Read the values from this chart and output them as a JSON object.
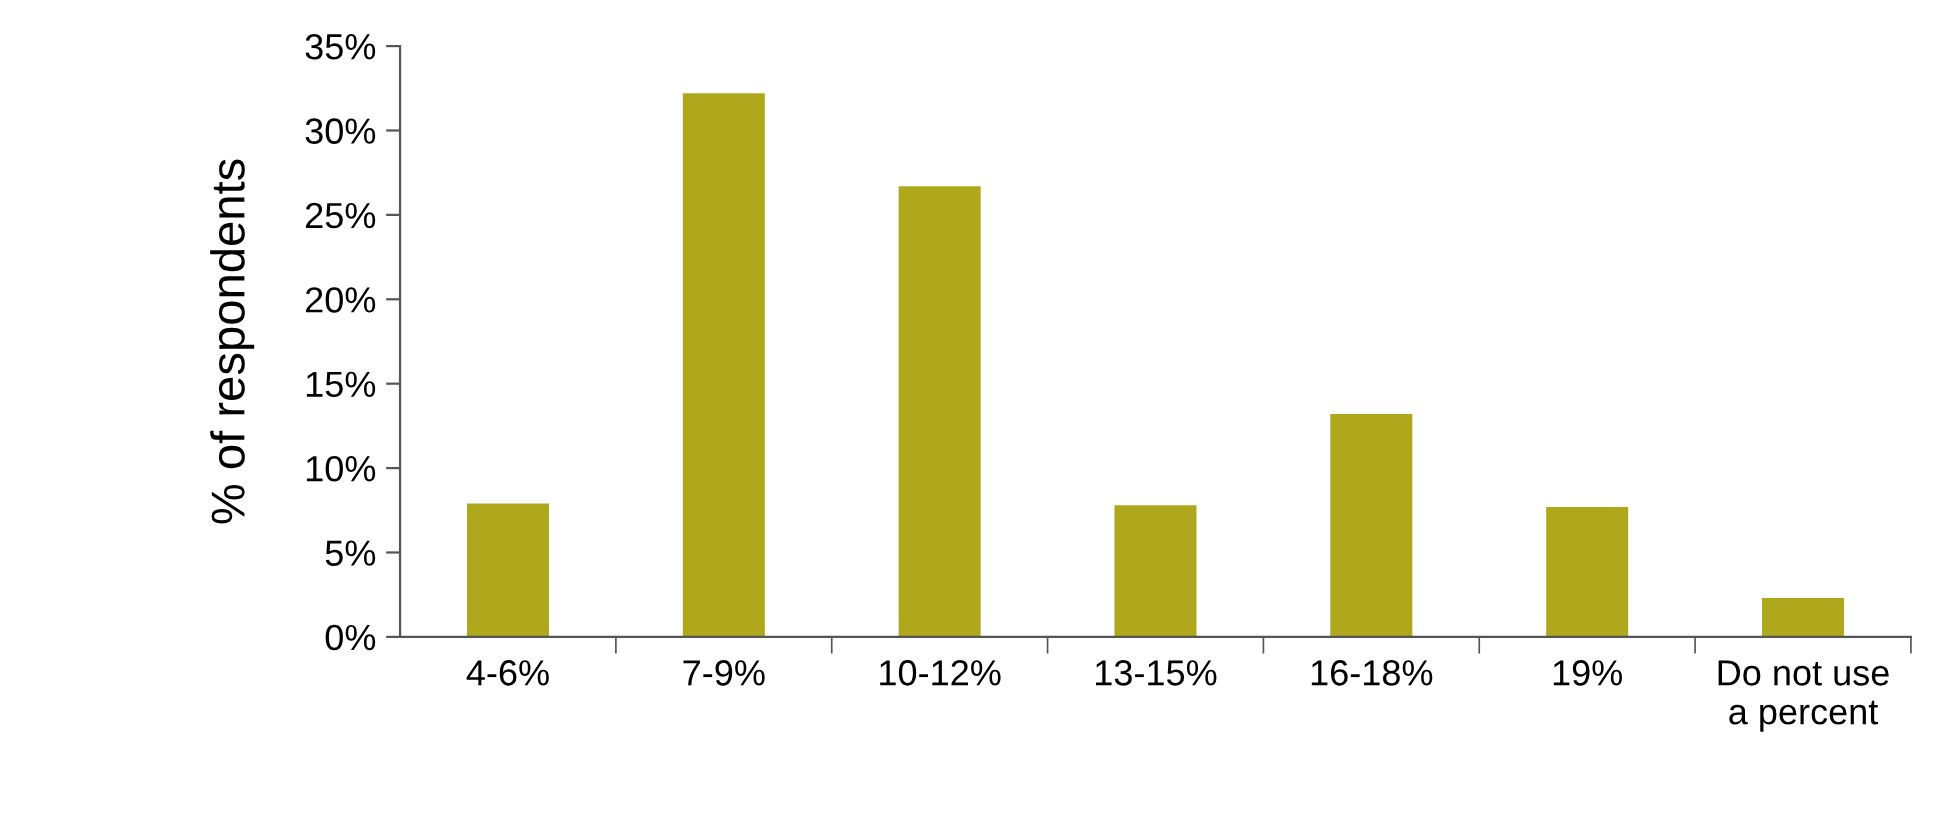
{
  "chart_data": {
    "type": "bar",
    "ylabel": "% of respondents",
    "categories": [
      "4-6%",
      "7-9%",
      "10-12%",
      "13-15%",
      "16-18%",
      "19%",
      "Do not use\na percent"
    ],
    "values": [
      7.9,
      32.2,
      26.7,
      7.8,
      13.2,
      7.7,
      2.3
    ],
    "color": "#b0a81c",
    "ylim": [
      0,
      35
    ],
    "yticks": [
      {
        "value": 0,
        "label": "0%"
      },
      {
        "value": 5,
        "label": "5%"
      },
      {
        "value": 10,
        "label": "10%"
      },
      {
        "value": 15,
        "label": "15%"
      },
      {
        "value": 20,
        "label": "20%"
      },
      {
        "value": 25,
        "label": "25%"
      },
      {
        "value": 30,
        "label": "30%"
      },
      {
        "value": 35,
        "label": "35%"
      }
    ],
    "grid": false,
    "legend": false
  }
}
